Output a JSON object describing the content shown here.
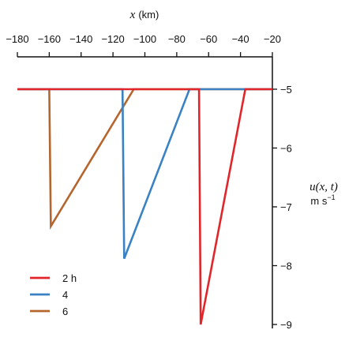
{
  "chart_data": {
    "type": "line",
    "x_axis": {
      "title_var": "x",
      "title_unit": "(km)",
      "position": "top",
      "range": [
        -180,
        -20
      ],
      "ticks": [
        -180,
        -160,
        -140,
        -120,
        -100,
        -80,
        -60,
        -40,
        -20
      ],
      "tick_labels": [
        "−180",
        "−160",
        "−140",
        "−120",
        "−100",
        "−80",
        "−60",
        "−40",
        "−20"
      ]
    },
    "y_axis": {
      "title_var": "u(x, t)",
      "title_unit": "m s",
      "title_unit_exp": "−1",
      "position": "right",
      "range": [
        -9,
        -5
      ],
      "ticks": [
        -5,
        -6,
        -7,
        -8,
        -9
      ],
      "tick_labels": [
        "−5",
        "−6",
        "−7",
        "−8",
        "−9"
      ]
    },
    "grid": false,
    "legend_position": "bottom-left",
    "series": [
      {
        "name": "2 h",
        "color": "#e0262b",
        "points": [
          [
            -180,
            -5
          ],
          [
            -66,
            -5
          ],
          [
            -65,
            -9
          ],
          [
            -37,
            -5
          ],
          [
            -20,
            -5
          ]
        ]
      },
      {
        "name": "4",
        "color": "#3b82c4",
        "points": [
          [
            -180,
            -5
          ],
          [
            -114,
            -5
          ],
          [
            -113,
            -7.88
          ],
          [
            -72,
            -5
          ],
          [
            -20,
            -5
          ]
        ]
      },
      {
        "name": "6",
        "color": "#b5662e",
        "points": [
          [
            -180,
            -5
          ],
          [
            -160,
            -5
          ],
          [
            -159,
            -7.33
          ],
          [
            -107,
            -5
          ],
          [
            -20,
            -5
          ]
        ]
      }
    ]
  }
}
